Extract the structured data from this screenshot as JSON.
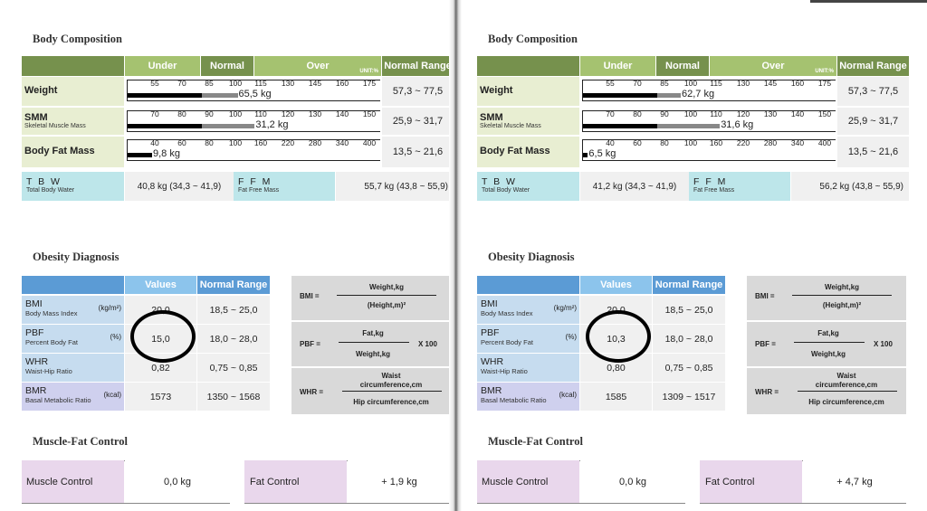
{
  "sections": {
    "body_composition": "Body Composition",
    "obesity_diagnosis": "Obesity Diagnosis",
    "muscle_fat_control": "Muscle-Fat Control"
  },
  "bc_header": {
    "under": "Under",
    "normal": "Normal",
    "over": "Over",
    "unit": "UNIT:%",
    "normal_range": "Normal Range"
  },
  "rows": {
    "weight": {
      "label": "Weight",
      "ticks": [
        "55",
        "70",
        "85",
        "100",
        "115",
        "130",
        "145",
        "160",
        "175"
      ]
    },
    "smm": {
      "label": "SMM",
      "sub": "Skeletal Muscle Mass",
      "ticks": [
        "70",
        "80",
        "90",
        "100",
        "110",
        "120",
        "130",
        "140",
        "150"
      ]
    },
    "bfm": {
      "label": "Body Fat Mass",
      "ticks": [
        "40",
        "60",
        "80",
        "100",
        "160",
        "220",
        "280",
        "340",
        "400"
      ]
    }
  },
  "tbw": {
    "label": "T B W",
    "sub": "Total Body Water"
  },
  "ffm": {
    "label": "F F M",
    "sub": "Fat Free Mass"
  },
  "ob_header": {
    "values": "Values",
    "normal_range": "Normal Range"
  },
  "ob_rows": {
    "bmi": {
      "label": "BMI",
      "sub": "Body Mass Index",
      "unit": "(kg/m²)"
    },
    "pbf": {
      "label": "PBF",
      "sub": "Percent Body Fat",
      "unit": "(%)"
    },
    "whr": {
      "label": "WHR",
      "sub": "Waist-Hip Ratio"
    },
    "bmr": {
      "label": "BMR",
      "sub": "Basal Metabolic Ratio",
      "unit": "(kcal)"
    }
  },
  "formulas": {
    "bmi_label": "BMI =",
    "bmi_num": "Weight,kg",
    "bmi_den": "(Height,m)²",
    "pbf_label": "PBF =",
    "pbf_num": "Fat,kg",
    "pbf_den": "Weight,kg",
    "pbf_mult": "X 100",
    "whr_label": "WHR =",
    "whr_num1": "Waist",
    "whr_num2": "circumference,cm",
    "whr_den": "Hip circumference,cm"
  },
  "mfc": {
    "muscle": "Muscle Control",
    "fat": "Fat Control"
  },
  "pages": [
    {
      "weight": {
        "value": "65,5 kg",
        "bar_fraction": 0.45,
        "range": "57,3 ~ 77,5"
      },
      "smm": {
        "value": "31,2 kg",
        "bar_fraction": 0.52,
        "range": "25,9 ~ 31,7"
      },
      "bfm": {
        "value": "9,8 kg",
        "bar_fraction": 0.1,
        "range": "13,5 ~ 21,6"
      },
      "tbw_value": "40,8 kg (34,3 ~ 41,9)",
      "ffm_value": "55,7 kg (43,8 ~ 55,9)",
      "bmi": {
        "value": "20,0",
        "range": "18,5 ~ 25,0"
      },
      "pbf": {
        "value": "15,0",
        "range": "18,0 ~ 28,0"
      },
      "whr": {
        "value": "0,82",
        "range": "0,75 ~ 0,85"
      },
      "bmr": {
        "value": "1573",
        "range": "1350 ~ 1568"
      },
      "muscle_control": "0,0 kg",
      "fat_control": "+ 1,9 kg"
    },
    {
      "weight": {
        "value": "62,7 kg",
        "bar_fraction": 0.4,
        "range": "57,3 ~ 77,5"
      },
      "smm": {
        "value": "31,6 kg",
        "bar_fraction": 0.56,
        "range": "25,9 ~ 31,7"
      },
      "bfm": {
        "value": "6,5 kg",
        "bar_fraction": 0.02,
        "range": "13,5 ~ 21,6"
      },
      "tbw_value": "41,2 kg (34,3 ~ 41,9)",
      "ffm_value": "56,2 kg (43,8 ~ 55,9)",
      "bmi": {
        "value": "20,0",
        "range": "18,5 ~ 25,0"
      },
      "pbf": {
        "value": "10,3",
        "range": "18,0 ~ 28,0"
      },
      "whr": {
        "value": "0,80",
        "range": "0,75 ~ 0,85"
      },
      "bmr": {
        "value": "1585",
        "range": "1309 ~ 1517"
      },
      "muscle_control": "0,0 kg",
      "fat_control": "+ 4,7 kg"
    }
  ]
}
